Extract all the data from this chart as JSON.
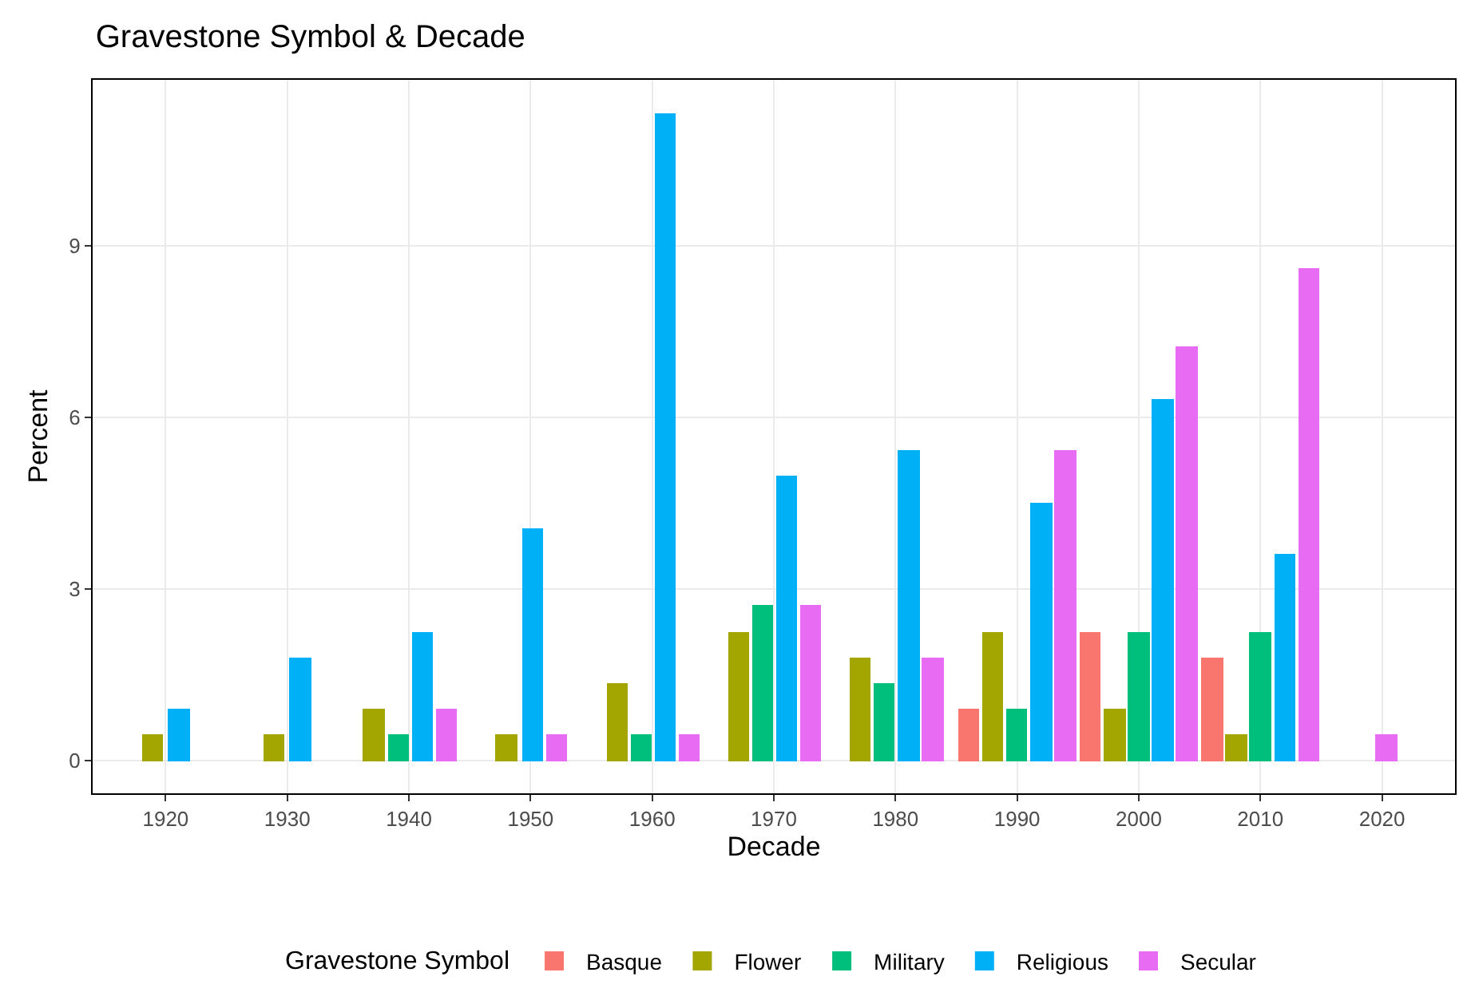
{
  "chart_data": {
    "type": "bar",
    "title": "Gravestone Symbol & Decade",
    "xlabel": "Decade",
    "ylabel": "Percent",
    "legend_title": "Gravestone Symbol",
    "categories": [
      "1920",
      "1930",
      "1940",
      "1950",
      "1960",
      "1970",
      "1980",
      "1990",
      "2000",
      "2010",
      "2020"
    ],
    "series": [
      {
        "name": "Basque",
        "color": "#f8766d",
        "values": [
          null,
          null,
          null,
          null,
          null,
          null,
          null,
          0.9,
          2.26,
          1.81,
          null
        ]
      },
      {
        "name": "Flower",
        "color": "#a3a500",
        "values": [
          0.45,
          0.45,
          0.9,
          0.45,
          1.36,
          2.26,
          1.81,
          2.26,
          0.9,
          0.45,
          null
        ]
      },
      {
        "name": "Military",
        "color": "#00bf7d",
        "values": [
          null,
          null,
          0.45,
          null,
          0.45,
          2.71,
          1.36,
          0.9,
          2.26,
          2.26,
          null
        ]
      },
      {
        "name": "Religious",
        "color": "#00b0f6",
        "values": [
          0.9,
          1.81,
          2.26,
          4.07,
          11.31,
          4.98,
          5.43,
          4.52,
          6.33,
          3.62,
          null
        ]
      },
      {
        "name": "Secular",
        "color": "#e76bf3",
        "values": [
          null,
          null,
          0.9,
          0.45,
          0.45,
          2.71,
          1.81,
          5.43,
          7.24,
          8.6,
          0.45
        ]
      }
    ],
    "ylim": [
      -0.57,
      11.9
    ],
    "yticks": [
      0,
      3,
      6,
      9
    ],
    "grid": true,
    "legend": "bottom"
  }
}
